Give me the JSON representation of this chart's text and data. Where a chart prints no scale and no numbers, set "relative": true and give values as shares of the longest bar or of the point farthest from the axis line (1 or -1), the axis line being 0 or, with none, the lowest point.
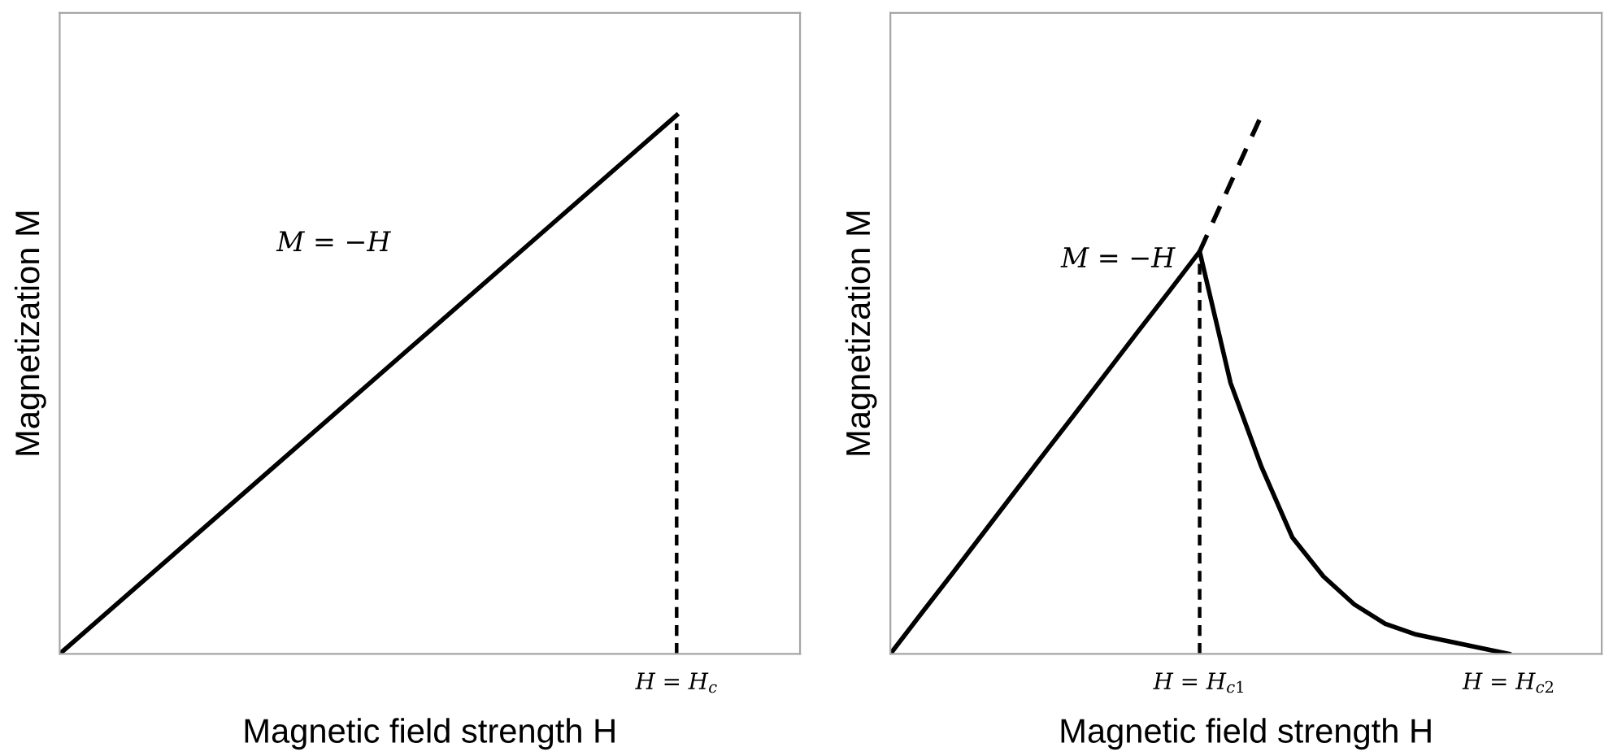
{
  "chart_data": [
    {
      "type": "line",
      "relative": true,
      "xlabel": "Magnetic field strength H",
      "ylabel": "Magnetization M",
      "tick_labels": false,
      "annotations": [
        "M = −H",
        "H = H$_{c}$"
      ],
      "categories": [
        null,
        null,
        null,
        null,
        null,
        null,
        null
      ],
      "series": [
        {
          "color": "#000000",
          "values": [
            0,
            0.2,
            0.4,
            0.6,
            0.8,
            1,
            null
          ]
        }
      ]
    },
    {
      "type": "line",
      "relative": true,
      "xlabel": "Magnetic field strength H",
      "ylabel": "Magnetization M",
      "tick_labels": "x",
      "annotations": [
        "M = −H"
      ],
      "categories": [
        null,
        null,
        null,
        null,
        null,
        null,
        null,
        null,
        null,
        null,
        "H = H$_{c1}$",
        null,
        null,
        null,
        null,
        null,
        null,
        null,
        null,
        null,
        "H = H$_{c2}$",
        null,
        null,
        null
      ],
      "ref_lines": [
        {
          "axis": "x",
          "value": "H = H$_{c1}$",
          "line_style": "dashed",
          "color": "#000000"
        }
      ],
      "series": [
        {
          "color": "#000000",
          "values": [
            0,
            0.075,
            0.149,
            0.224,
            0.299,
            0.374,
            0.448,
            0.523,
            0.598,
            0.672,
            0.747,
            0.503,
            0.347,
            0.216,
            0.144,
            0.092,
            0.056,
            0.036,
            0.024,
            0.012,
            0,
            null,
            null,
            null
          ]
        },
        {
          "color": "#000000",
          "line_style": "dashed",
          "values": [
            null,
            null,
            null,
            null,
            null,
            null,
            null,
            null,
            null,
            null,
            0.747,
            0.874,
            1,
            null,
            null,
            null,
            null,
            null,
            null,
            null,
            null,
            null,
            null,
            null
          ]
        }
      ]
    }
  ]
}
